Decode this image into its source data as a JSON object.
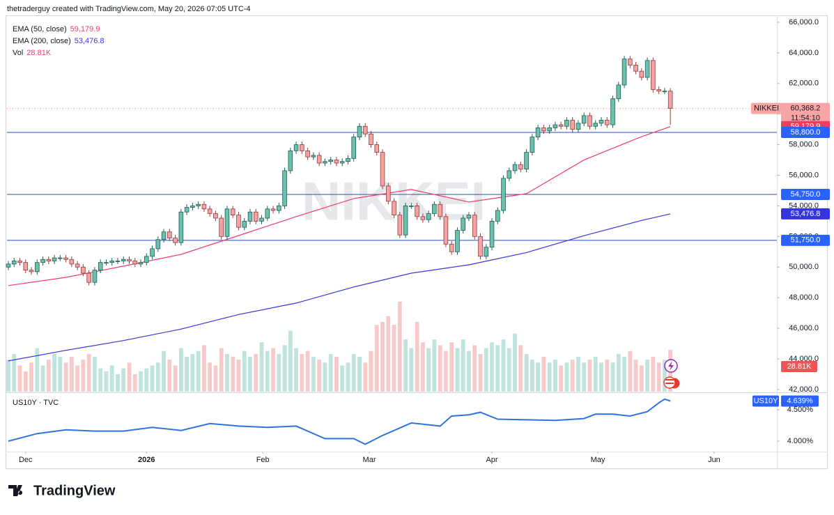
{
  "header": "thetraderguy created with TradingView.com, May 20, 2026 07:05 UTC-4",
  "footer": "TradingView",
  "chart_data": {
    "type": "candlestick",
    "symbol": "NIKKEI",
    "xlim": [
      -0.24,
      133.5
    ],
    "xticks": [
      {
        "value": 3,
        "label": "Dec"
      },
      {
        "value": 24,
        "label": "2026"
      },
      {
        "value": 44.2,
        "label": "Feb"
      },
      {
        "value": 62.7,
        "label": "Mar"
      },
      {
        "value": 84,
        "label": "Apr"
      },
      {
        "value": 102.4,
        "label": "May"
      },
      {
        "value": 122.6,
        "label": "Jun"
      }
    ],
    "ylim": [
      41860,
      67090
    ],
    "yticks": [
      {
        "value": 66000,
        "label": "66,000.0"
      },
      {
        "value": 64000,
        "label": "64,000.0"
      },
      {
        "value": 62000,
        "label": "62,000.0"
      },
      {
        "value": 60000,
        "label": "60,000.0"
      },
      {
        "value": 58000,
        "label": "58,000.0"
      },
      {
        "value": 56000,
        "label": "56,000.0"
      },
      {
        "value": 54000,
        "label": "54,000.0"
      },
      {
        "value": 52000,
        "label": "52,000.0"
      },
      {
        "value": 50000,
        "label": "50,000.0"
      },
      {
        "value": 48000,
        "label": "48,000.0"
      },
      {
        "value": 46000,
        "label": "46,000.0"
      },
      {
        "value": 44000,
        "label": "44,000.0"
      },
      {
        "value": 42000,
        "label": "42,000.0"
      }
    ],
    "open": [
      50000,
      50200,
      50400,
      50300,
      49800,
      49700,
      50300,
      50500,
      50400,
      50600,
      50600,
      50500,
      50200,
      50000,
      49600,
      49000,
      49800,
      50300,
      50300,
      50400,
      50400,
      50500,
      50400,
      50200,
      50300,
      50700,
      51200,
      51800,
      52300,
      51900,
      51600,
      53600,
      53900,
      54000,
      54100,
      53800,
      53500,
      53200,
      52000,
      53800,
      53400,
      52600,
      53000,
      53600,
      53000,
      53200,
      53800,
      53700,
      54000,
      56300,
      57600,
      58000,
      57600,
      57200,
      57300,
      56800,
      56900,
      57000,
      56800,
      56900,
      57100,
      58500,
      59200,
      58700,
      58000,
      57500,
      55300,
      54300,
      53400,
      52100,
      54000,
      54000,
      53300,
      53100,
      53500,
      54100,
      53300,
      51500,
      51000,
      52400,
      53200,
      53400,
      52000,
      50700,
      51300,
      53000,
      53700,
      55800,
      56300,
      56700,
      56400,
      57500,
      58500,
      59100,
      58900,
      59100,
      59300,
      59200,
      59600,
      59000,
      59400,
      59900,
      59200,
      59400,
      59600,
      59300,
      61000,
      61900,
      63600,
      63200,
      62800,
      62400,
      63500,
      61600,
      61500,
      61500
    ],
    "high": [
      50400,
      50600,
      50600,
      50500,
      50000,
      50500,
      50700,
      50700,
      50800,
      50800,
      50800,
      50700,
      50400,
      50200,
      49800,
      50000,
      50500,
      50500,
      50600,
      50600,
      50700,
      50700,
      50600,
      50500,
      50900,
      51400,
      52000,
      52500,
      52500,
      52100,
      53800,
      54100,
      54200,
      54300,
      54300,
      54000,
      53700,
      53400,
      54000,
      54000,
      53600,
      53200,
      53800,
      53800,
      53400,
      54000,
      54000,
      54200,
      56500,
      57800,
      58200,
      58200,
      57800,
      57500,
      57500,
      57100,
      57200,
      57200,
      57100,
      57300,
      58700,
      59400,
      59400,
      58900,
      58200,
      57700,
      55500,
      54500,
      53600,
      54200,
      54200,
      54200,
      53500,
      53700,
      54300,
      54300,
      53500,
      51700,
      52600,
      53400,
      53600,
      53600,
      52200,
      51500,
      53200,
      53900,
      56000,
      56500,
      56900,
      56900,
      57700,
      58700,
      59300,
      59300,
      59300,
      59500,
      59500,
      59800,
      59800,
      59600,
      60100,
      60100,
      59600,
      59800,
      59800,
      61200,
      62100,
      63800,
      63800,
      63400,
      63000,
      63700,
      63700,
      61800,
      61700,
      61700
    ],
    "low": [
      49800,
      50000,
      50100,
      49600,
      49500,
      49500,
      50100,
      50200,
      50200,
      50400,
      50300,
      50000,
      49800,
      49400,
      48800,
      48800,
      49600,
      50100,
      50100,
      50200,
      50200,
      50200,
      50000,
      50000,
      50100,
      50500,
      51000,
      51600,
      51700,
      51400,
      51400,
      53400,
      53700,
      53800,
      53600,
      53300,
      53000,
      51800,
      51800,
      53200,
      52400,
      52400,
      52800,
      52800,
      52800,
      53000,
      53500,
      53500,
      53800,
      56100,
      57400,
      57400,
      57000,
      57000,
      56600,
      56600,
      56700,
      56600,
      56600,
      56700,
      56900,
      58300,
      58500,
      57800,
      57300,
      55100,
      54100,
      53200,
      51900,
      51900,
      53800,
      53100,
      52900,
      52900,
      53300,
      53100,
      51300,
      50800,
      50800,
      52200,
      53000,
      51800,
      50500,
      50500,
      51100,
      52800,
      53500,
      55600,
      56100,
      56200,
      56200,
      57300,
      58300,
      58700,
      58700,
      58900,
      59000,
      59000,
      58800,
      58800,
      59200,
      59000,
      59000,
      59200,
      59100,
      59100,
      60800,
      61700,
      63000,
      62600,
      62200,
      62200,
      61400,
      61300,
      61300,
      59300
    ],
    "close": [
      50200,
      50400,
      50300,
      49800,
      49700,
      50300,
      50500,
      50400,
      50600,
      50600,
      50500,
      50200,
      50000,
      49600,
      49000,
      49800,
      50300,
      50300,
      50400,
      50400,
      50500,
      50400,
      50200,
      50300,
      50700,
      51200,
      51800,
      52300,
      51900,
      51600,
      53600,
      53900,
      54000,
      54100,
      53800,
      53500,
      53200,
      52000,
      53800,
      53400,
      52600,
      53000,
      53600,
      53000,
      53200,
      53800,
      53700,
      54000,
      56300,
      57600,
      58000,
      57600,
      57200,
      57300,
      56800,
      56900,
      57000,
      56800,
      56900,
      57100,
      58500,
      59200,
      58700,
      58000,
      57500,
      55300,
      54300,
      53400,
      52100,
      54000,
      54000,
      53300,
      53100,
      53500,
      54100,
      53300,
      51500,
      51000,
      52400,
      53200,
      53400,
      52000,
      50700,
      51300,
      53000,
      53700,
      55800,
      56300,
      56700,
      56400,
      57500,
      58500,
      59100,
      58900,
      59100,
      59300,
      59200,
      59600,
      59000,
      59400,
      59900,
      59200,
      59400,
      59600,
      59300,
      61000,
      61900,
      63600,
      63200,
      62800,
      62400,
      63500,
      61600,
      61500,
      61500,
      60368.2
    ],
    "last": {
      "label": "60,368.2",
      "countdown": "11:54:10"
    },
    "colors": {
      "up": "#6cc0ae",
      "up_edge": "#1f5c50",
      "down": "#f3a3a3",
      "down_edge": "#8e3b3b",
      "vol_up": "#bfe3dd",
      "vol_down": "#f7c9c9",
      "level": "#2a4fb5"
    },
    "indicators": [
      {
        "name": "EMA (50, close)",
        "color": "#f23a6a",
        "x": [
          0,
          10,
          20,
          30,
          40,
          50,
          60,
          70,
          80,
          90,
          100,
          110,
          115
        ],
        "values": [
          48790,
          49330,
          50060,
          50830,
          52060,
          53300,
          54480,
          55070,
          54250,
          54800,
          57000,
          58530,
          59179.9
        ],
        "last_label": "59,179.9"
      },
      {
        "name": "EMA (200, close)",
        "color": "#3535e0",
        "x": [
          0,
          10,
          20,
          30,
          40,
          50,
          60,
          70,
          80,
          90,
          100,
          110,
          115
        ],
        "values": [
          43870,
          44560,
          45200,
          45950,
          46900,
          47650,
          48700,
          49600,
          50150,
          50950,
          52050,
          53050,
          53476.8
        ],
        "last_label": "53,476.8"
      }
    ],
    "volume": {
      "name": "Vol",
      "vlim": [
        0,
        120
      ],
      "values": [
        22,
        26,
        18,
        14,
        20,
        30,
        18,
        22,
        26,
        24,
        20,
        24,
        18,
        22,
        26,
        24,
        16,
        14,
        18,
        12,
        16,
        20,
        12,
        14,
        16,
        18,
        20,
        28,
        22,
        18,
        30,
        24,
        26,
        28,
        32,
        20,
        18,
        30,
        26,
        24,
        22,
        28,
        24,
        26,
        34,
        28,
        30,
        26,
        32,
        42,
        30,
        26,
        28,
        24,
        22,
        20,
        26,
        24,
        18,
        20,
        26,
        24,
        20,
        28,
        46,
        48,
        52,
        46,
        62,
        36,
        30,
        48,
        34,
        30,
        36,
        32,
        28,
        34,
        30,
        36,
        28,
        32,
        26,
        30,
        34,
        32,
        36,
        30,
        40,
        32,
        26,
        22,
        20,
        24,
        20,
        22,
        18,
        20,
        22,
        24,
        20,
        22,
        24,
        20,
        22,
        20,
        26,
        24,
        28,
        22,
        18,
        22,
        24,
        20,
        22,
        28.81
      ],
      "last_label": "28.81K"
    },
    "levels": [
      {
        "value": 58800,
        "label": "58,800.0"
      },
      {
        "value": 54750,
        "label": "54,750.0"
      },
      {
        "value": 51750,
        "label": "51,750.0"
      }
    ],
    "lower_pane": {
      "name": "US10Y · TVC",
      "symbol": "US10Y",
      "color": "#2f73e0",
      "ylim": [
        3.833,
        4.756
      ],
      "yticks": [
        {
          "value": 4.5,
          "label": "4.500%"
        },
        {
          "value": 4,
          "label": "4.000%"
        }
      ],
      "x": [
        0,
        5,
        10,
        15,
        20,
        25,
        30,
        35,
        40,
        45,
        50,
        55,
        60,
        62,
        65,
        70,
        75,
        77,
        80,
        82,
        85,
        90,
        95,
        100,
        102,
        105,
        108,
        111,
        113,
        114,
        115
      ],
      "values": [
        4.0,
        4.12,
        4.18,
        4.16,
        4.16,
        4.22,
        4.17,
        4.28,
        4.24,
        4.22,
        4.24,
        4.04,
        4.04,
        3.95,
        4.09,
        4.29,
        4.24,
        4.4,
        4.42,
        4.46,
        4.35,
        4.34,
        4.33,
        4.36,
        4.43,
        4.43,
        4.4,
        4.47,
        4.61,
        4.67,
        4.639
      ],
      "last_label": "4.639%"
    }
  }
}
